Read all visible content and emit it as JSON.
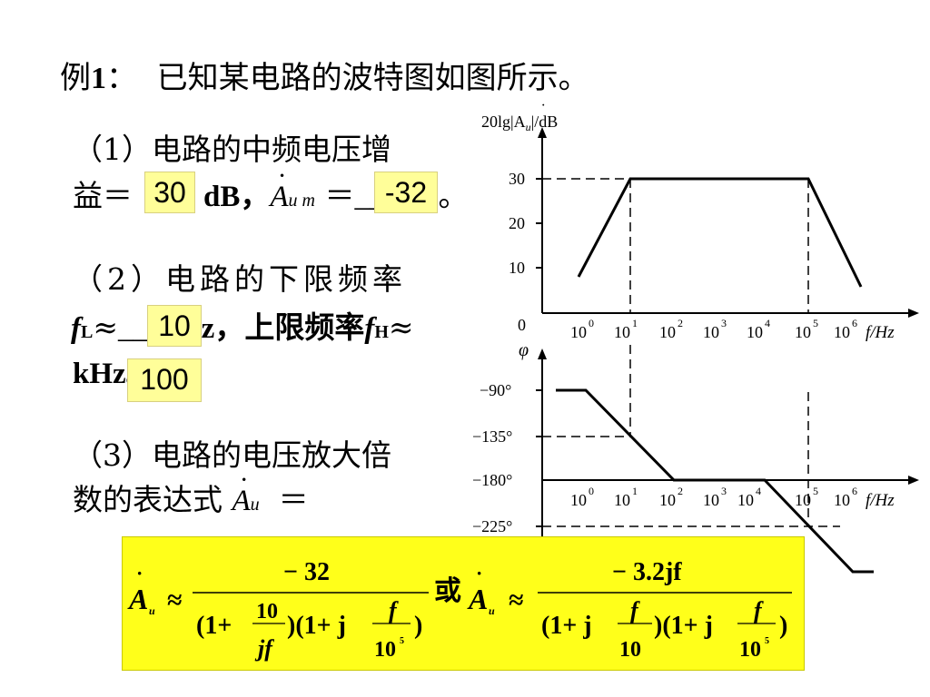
{
  "title": {
    "label": "例",
    "num": "1",
    "colon": "：",
    "text": "已知某电路的波特图如图所示。"
  },
  "q1": {
    "line1": "（1）电路的中频电压增",
    "line2_pre": "益＝",
    "unit": "dB，",
    "A": "A",
    "sub": "u m",
    "eq": "＝",
    "blank": "_____",
    "end": "。",
    "answer_gain": "30",
    "answer_Aum": "-32"
  },
  "q2": {
    "line1": "（2）电路的下限频率",
    "fL": "f",
    "fL_sub": "L",
    "approx": "≈",
    "blank": "____",
    "hz_tail": "Hz，上限频率",
    "fH": "f",
    "fH_sub": "H",
    "approx2": "≈",
    "line3": "kHz。",
    "answer_fL": "10",
    "answer_fH": "100"
  },
  "q3": {
    "line1": "（3）电路的电压放大倍",
    "line2": "数的表达式",
    "A": "A",
    "sub": "u",
    "eq": "＝"
  },
  "amp_plot": {
    "ylabel": "20lg|A",
    "ylabel_sub": "u",
    "ylabel_tail": "|/dB",
    "yticks": [
      "30",
      "20",
      "10",
      "0"
    ],
    "xlabel": "f/Hz",
    "xticks": [
      "10",
      "10",
      "10",
      "10",
      "10",
      "10",
      "10"
    ],
    "xexp": [
      "0",
      "1",
      "2",
      "3",
      "4",
      "5",
      "6"
    ]
  },
  "phase_plot": {
    "ylabel": "φ",
    "yticks": [
      "−90°",
      "−135°",
      "−180°",
      "−225°"
    ],
    "xlabel": "f/Hz",
    "xticks": [
      "10",
      "10",
      "10",
      "10",
      "10",
      "10",
      "10"
    ],
    "xexp": [
      "0",
      "1",
      "2",
      "3",
      "4",
      "5",
      "6"
    ]
  },
  "formula": {
    "A": "A",
    "sub": "u",
    "approx": "≈",
    "num1": "− 32",
    "den1_a": "(1+",
    "den1_frac_num": "10",
    "den1_frac_den": "jf",
    "den1_b": ")(1+ j",
    "den1_frac2_num": "f",
    "den1_frac2_den": "10",
    "den1_frac2_exp": "5",
    "den1_c": ")",
    "or": "或",
    "num2": "− 3.2jf",
    "den2_a": "(1+ j",
    "den2_frac_num": "f",
    "den2_frac_den": "10",
    "den2_b": ")(1+ j",
    "den2_frac2_num": "f",
    "den2_frac2_den": "10",
    "den2_frac2_exp": "5",
    "den2_c": ")"
  },
  "colors": {
    "answer_bg": "#fffe99",
    "formula_bg": "#ffff1a"
  }
}
